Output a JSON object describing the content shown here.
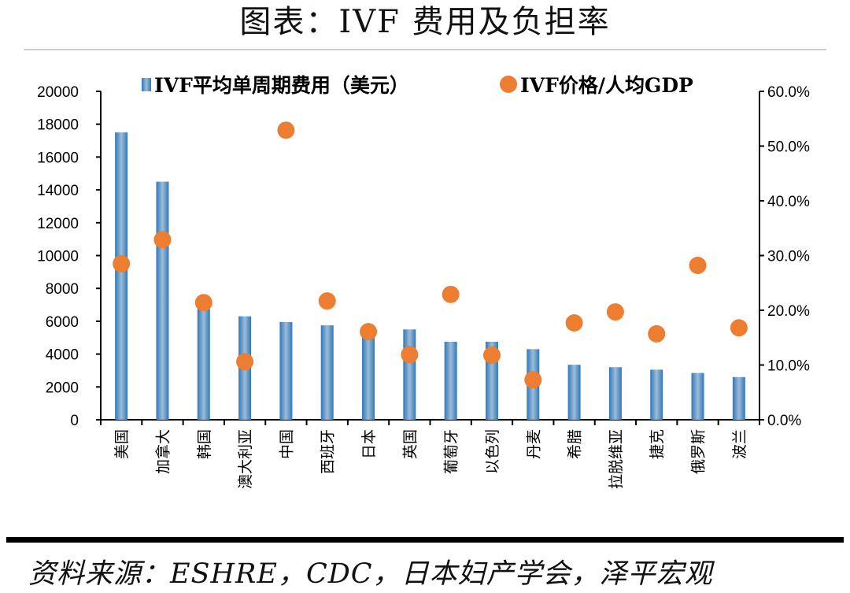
{
  "title": "图表：IVF 费用及负担率",
  "source": "资料来源：ESHRE，CDC，日本妇产学会，泽平宏观",
  "chart_data": {
    "type": "bar",
    "categories": [
      "美国",
      "加拿大",
      "韩国",
      "澳大利亚",
      "中国",
      "西班牙",
      "日本",
      "英国",
      "葡萄牙",
      "以色列",
      "丹麦",
      "希腊",
      "拉脱维亚",
      "捷克",
      "俄罗斯",
      "波兰"
    ],
    "series": [
      {
        "name": "IVF平均单周期费用（美元）",
        "type": "bar",
        "axis": "left",
        "color": "#4f8fc4",
        "values": [
          17500,
          14500,
          7150,
          6300,
          5950,
          5750,
          5400,
          5500,
          4750,
          4750,
          4300,
          3350,
          3200,
          3050,
          2850,
          2600
        ]
      },
      {
        "name": "IVF价格/人均GDP",
        "type": "scatter",
        "axis": "right",
        "color": "#ed7d31",
        "values": [
          28.5,
          32.9,
          21.4,
          10.6,
          52.9,
          21.7,
          16.1,
          11.9,
          22.9,
          11.8,
          7.3,
          17.7,
          19.7,
          15.7,
          28.2,
          16.8
        ]
      }
    ],
    "left_axis": {
      "ylim": [
        0,
        20000
      ],
      "ticks": [
        "0",
        "2000",
        "4000",
        "6000",
        "8000",
        "10000",
        "12000",
        "14000",
        "16000",
        "18000",
        "20000"
      ]
    },
    "right_axis": {
      "ylim": [
        0,
        60
      ],
      "ticks": [
        "0.0%",
        "10.0%",
        "20.0%",
        "30.0%",
        "40.0%",
        "50.0%",
        "60.0%"
      ]
    },
    "grid": false,
    "legend_placement": "top"
  }
}
